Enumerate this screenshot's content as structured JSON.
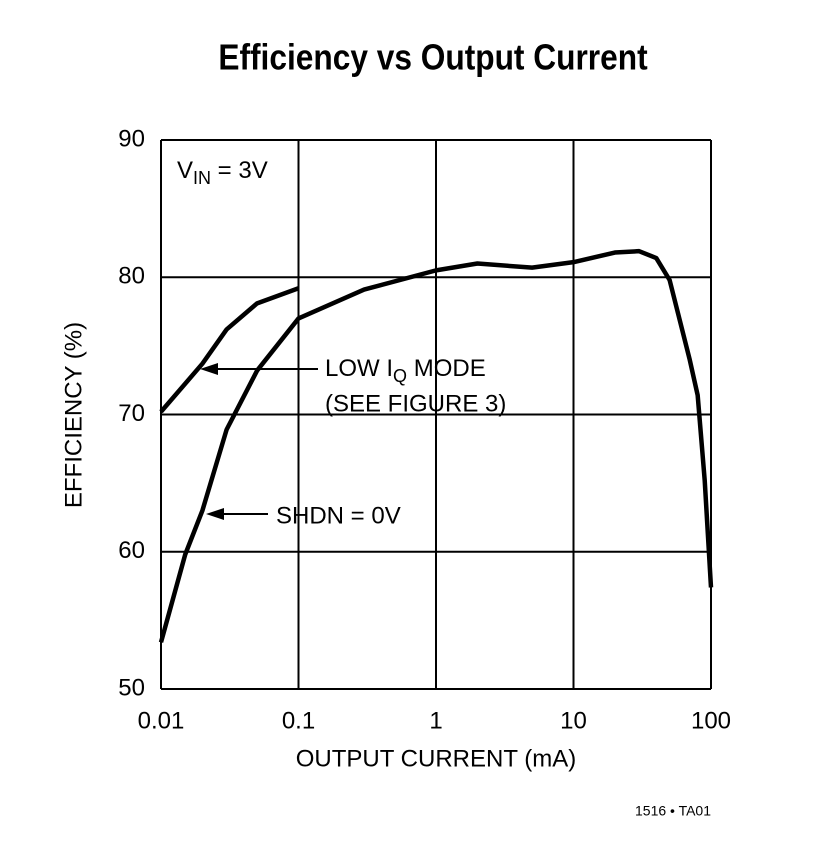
{
  "chart_data": {
    "type": "line",
    "title": "Efficiency vs Output Current",
    "x_label": "OUTPUT CURRENT (mA)",
    "y_label": "EFFICIENCY (%)",
    "x_log": true,
    "grid": true,
    "xlim": [
      0.01,
      100
    ],
    "xticks": [
      0.01,
      0.1,
      1,
      10,
      100
    ],
    "ylim": [
      50,
      90
    ],
    "yticks": [
      50,
      60,
      70,
      80,
      90
    ],
    "series": [
      {
        "color": "#000000",
        "x": [
          0.01,
          0.02,
          0.03,
          0.05,
          0.1
        ],
        "values": [
          70.2,
          73.7,
          76.2,
          78.1,
          79.2
        ]
      },
      {
        "color": "#000000",
        "x": [
          0.01,
          0.015,
          0.02,
          0.03,
          0.05,
          0.1,
          0.3,
          1,
          2,
          5,
          10,
          20,
          30,
          40,
          50,
          70,
          80,
          90,
          100
        ],
        "values": [
          53.4,
          59.8,
          63.0,
          68.9,
          73.2,
          77.0,
          79.1,
          80.5,
          81.0,
          80.7,
          81.1,
          81.8,
          81.9,
          81.4,
          79.8,
          74.0,
          71.4,
          65.2,
          57.4
        ]
      }
    ],
    "annotations": {
      "vin": {
        "main": "V",
        "sub": "IN",
        "rest": " = 3V"
      },
      "low_iq": {
        "main": "LOW I",
        "sub": "Q",
        "rest": " MODE"
      },
      "see_figure": "(SEE FIGURE 3)",
      "shdn": "SHDN = 0V"
    },
    "footnote": "1516 • TA01"
  }
}
